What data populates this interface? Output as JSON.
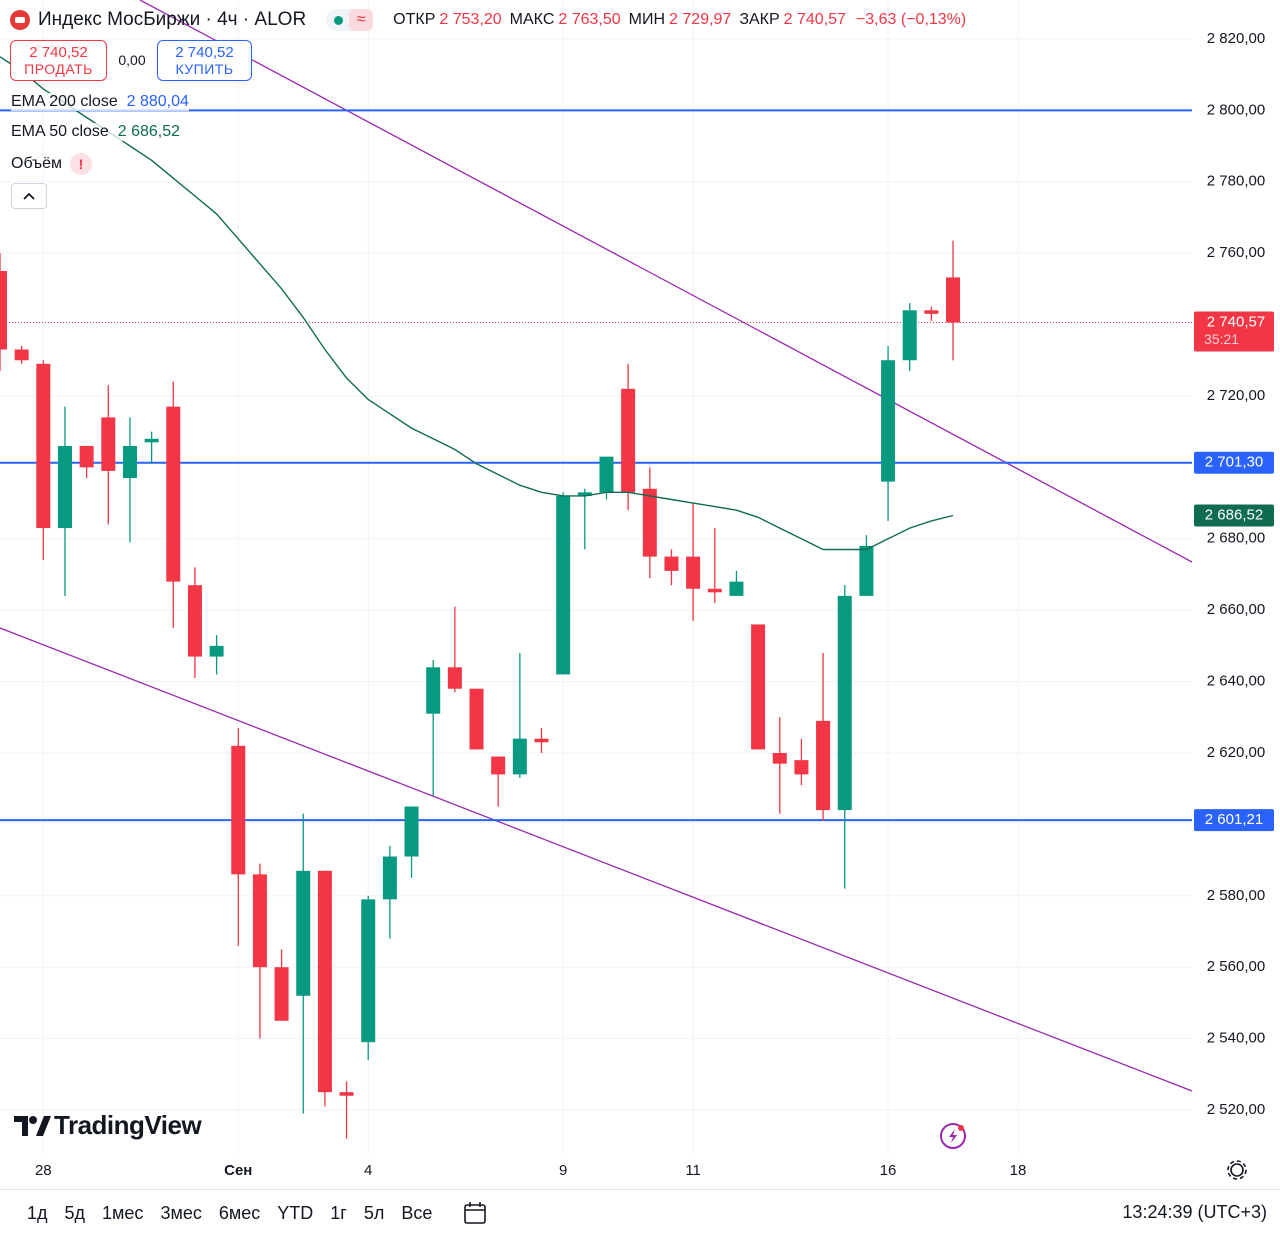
{
  "header": {
    "title": "Индекс МосБиржи · 4ч · ALOR",
    "change": "−3,63 (−0,13%)"
  },
  "trade": {
    "sell_price": "2 740,52",
    "sell": "ПРОДАТЬ",
    "spread": "0,00",
    "buy_price": "2 740,52",
    "buy": "КУПИТЬ"
  },
  "indicators": {
    "volume": "Объём",
    "warning": "!"
  },
  "chart_data": {
    "type": "candlestick",
    "categories": [
      null,
      null,
      "28",
      null,
      null,
      null,
      null,
      null,
      null,
      null,
      null,
      "Сен",
      null,
      null,
      null,
      null,
      null,
      "4",
      null,
      null,
      null,
      null,
      null,
      null,
      null,
      null,
      "9",
      null,
      null,
      null,
      null,
      null,
      "11",
      null,
      null,
      null,
      null,
      null,
      null,
      null,
      null,
      "16",
      null,
      null,
      null,
      null,
      null,
      "18",
      null,
      null,
      null,
      null,
      null,
      null,
      null,
      null
    ],
    "open": [
      2755,
      2733,
      2729,
      2683,
      2706,
      2714,
      2697,
      2707,
      2717,
      2667,
      2647,
      2622,
      2586,
      2560,
      2552,
      2587,
      2525,
      2539,
      2579,
      2591,
      2631,
      2644,
      2638,
      2619,
      2614,
      2624,
      2642,
      2692,
      2693,
      2722,
      2694,
      2675,
      2675,
      2666,
      2664,
      2656,
      2620,
      2618,
      2629,
      2604,
      2664,
      2696,
      2730,
      2744,
      2753.2,
      null,
      null,
      null,
      null,
      null,
      null,
      null,
      null,
      null,
      null,
      null
    ],
    "high": [
      2760,
      2734,
      2730,
      2717,
      2706,
      2723,
      2714,
      2710,
      2724,
      2672,
      2653,
      2627,
      2589,
      2565,
      2603,
      2587,
      2528,
      2580,
      2594,
      2605,
      2646,
      2661,
      2638,
      2619,
      2648,
      2627,
      2693,
      2694,
      2703,
      2729,
      2700,
      2677,
      2690,
      2683,
      2671,
      2656,
      2630,
      2624,
      2648,
      2667,
      2681,
      2734,
      2746,
      2745,
      2763.5,
      null,
      null,
      null,
      null,
      null,
      null,
      null,
      null,
      null,
      null,
      null
    ],
    "low": [
      2727,
      2729,
      2674,
      2664,
      2697,
      2684,
      2679,
      2701,
      2655,
      2641,
      2642,
      2566,
      2540,
      2545,
      2519,
      2521,
      2512,
      2534,
      2568,
      2585,
      2608,
      2637,
      2621,
      2605,
      2613,
      2620,
      2642,
      2677,
      2691,
      2688,
      2669,
      2667,
      2657,
      2662,
      2664,
      2621,
      2603,
      2611,
      2601,
      2582,
      2664,
      2685,
      2727,
      2741,
      2729.97,
      null,
      null,
      null,
      null,
      null,
      null,
      null,
      null,
      null,
      null,
      null
    ],
    "close": [
      2733,
      2730,
      2683,
      2706,
      2700,
      2699,
      2706,
      2708,
      2668,
      2647,
      2650,
      2586,
      2560,
      2545,
      2587,
      2525,
      2524,
      2579,
      2591,
      2605,
      2644,
      2638,
      2621,
      2614,
      2624,
      2623,
      2692,
      2693,
      2703,
      2693,
      2675,
      2671,
      2666,
      2665,
      2668,
      2621,
      2617,
      2614,
      2604,
      2664,
      2678,
      2730,
      2744,
      2743,
      2740.57,
      null,
      null,
      null,
      null,
      null,
      null,
      null,
      null,
      null,
      null,
      null
    ],
    "ohlc_labels": [
      "ОТКР",
      "МАКС",
      "МИН",
      "ЗАКР"
    ],
    "ohlc_value_labels": [
      "2 753,20",
      "2 763,50",
      "2 729,97",
      "2 740,57"
    ],
    "countdown": "35:21",
    "up_color": "#089981",
    "down_color": "#f23645",
    "series": [
      {
        "name": "EMA 200 close",
        "color": "#2962ff",
        "value": 2880.04,
        "value_label": "2 880,04"
      },
      {
        "name": "EMA 50 close",
        "color": "#0f6b52",
        "value_label": "2 686,52",
        "values": [
          2815,
          2811,
          2806,
          2802,
          2798,
          2794,
          2790,
          2786,
          2781,
          2776,
          2771,
          2764,
          2757,
          2750,
          2742,
          2733,
          2725,
          2719,
          2715,
          2711,
          2708,
          2705,
          2701,
          2698,
          2695,
          2693,
          2692,
          2692,
          2693,
          2693,
          2692,
          2691,
          2690,
          2689,
          2688,
          2686,
          2683,
          2680,
          2677,
          2677,
          2677,
          2680,
          2683,
          2685,
          2686.52,
          null,
          null,
          null,
          null,
          null,
          null,
          null,
          null,
          null,
          null,
          null
        ]
      }
    ],
    "levels": [
      {
        "value": 2800
      },
      {
        "value": 2701.3,
        "label": "2 701,30"
      },
      {
        "value": 2601.21,
        "label": "2 601,21"
      }
    ],
    "level_color": "#2962ff",
    "ylim": [
      2507.4,
      2830.9
    ],
    "yticks": [
      {
        "value": 2520,
        "label": "2 520,00"
      },
      {
        "value": 2540,
        "label": "2 540,00"
      },
      {
        "value": 2560,
        "label": "2 560,00"
      },
      {
        "value": 2580,
        "label": "2 580,00"
      },
      {
        "value": 2620,
        "label": "2 620,00"
      },
      {
        "value": 2640,
        "label": "2 640,00"
      },
      {
        "value": 2660,
        "label": "2 660,00"
      },
      {
        "value": 2680,
        "label": "2 680,00"
      },
      {
        "value": 2720,
        "label": "2 720,00"
      },
      {
        "value": 2760,
        "label": "2 760,00"
      },
      {
        "value": 2780,
        "label": "2 780,00"
      },
      {
        "value": 2800,
        "label": "2 800,00"
      },
      {
        "value": 2820,
        "label": "2 820,00"
      }
    ],
    "grid": true
  },
  "branding": "TradingView",
  "toolbar": {
    "ranges": [
      "1д",
      "5д",
      "1мес",
      "3мес",
      "6мес",
      "YTD",
      "1г",
      "5л",
      "Все"
    ],
    "time": "13:24:39 (UTC+3)"
  }
}
